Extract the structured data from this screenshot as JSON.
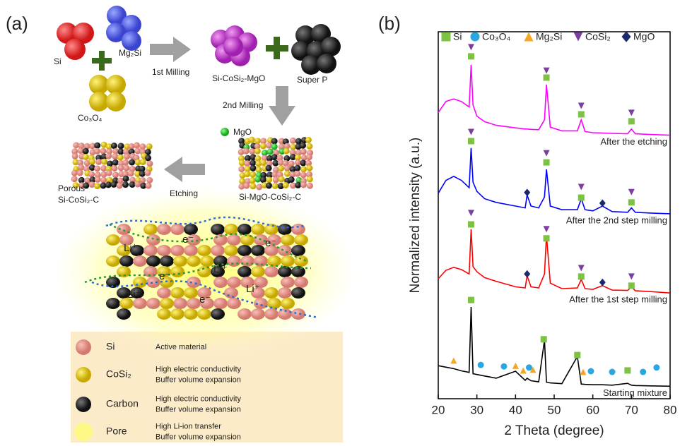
{
  "panel_labels": [
    "(a)",
    "(b)"
  ],
  "schematic": {
    "precursors": [
      "Si",
      "Mg₂Si",
      "Co₃O₄"
    ],
    "step1": "1st Milling",
    "product1": "Si-CoSi₂-MgO",
    "additive": "Super P",
    "step2": "2nd Milling",
    "mgo": "MgO",
    "product2": "Si-MgO-CoSi₂-C",
    "step3": "Etching",
    "product3": [
      "Porous",
      "Si-CoSi₂-C"
    ],
    "carriers": [
      "Li⁺",
      "e⁻",
      "Li⁺",
      "e⁻",
      "Li⁺",
      "e⁻",
      "Li⁺",
      "e⁻"
    ]
  },
  "legend_table": [
    {
      "name": "Si",
      "lines": [
        "Active material"
      ]
    },
    {
      "name": "CoSi₂",
      "lines": [
        "High electric conductivity",
        "Buffer volume expansion"
      ]
    },
    {
      "name": "Carbon",
      "lines": [
        "High electric conductivity",
        "Buffer volume expansion"
      ]
    },
    {
      "name": "Pore",
      "lines": [
        "High Li-ion transfer",
        "Buffer volume expansion"
      ]
    }
  ],
  "chart_data": {
    "type": "line",
    "xlabel": "2 Theta (degree)",
    "ylabel": "Normalized intensity (a.u.)",
    "xlim": [
      20,
      80
    ],
    "xticks": [
      20,
      30,
      40,
      50,
      60,
      70,
      80
    ],
    "ylim": [
      0,
      100
    ],
    "x": [
      20,
      22,
      24,
      26,
      28,
      28.5,
      29,
      30,
      32,
      35,
      40,
      42.5,
      43,
      44,
      46,
      47.5,
      48,
      49,
      52,
      56,
      57,
      58,
      60,
      62.5,
      65,
      69,
      70,
      71,
      75,
      80
    ],
    "series": [
      {
        "name": "After the etching",
        "color": "#ff00ff",
        "values": [
          78,
          81,
          81.7,
          81,
          79.5,
          91,
          80,
          77,
          75.5,
          74.5,
          73.8,
          73.5,
          73.5,
          73.4,
          73.3,
          76,
          85.6,
          74,
          73,
          73,
          76,
          72.8,
          72.5,
          72.4,
          72.3,
          72.2,
          73.5,
          72.2,
          72,
          71.8
        ]
      },
      {
        "name": "After the 2nd step milling",
        "color": "#0000ff",
        "values": [
          56,
          59.5,
          60.6,
          59.5,
          57.5,
          68.3,
          59,
          56.5,
          54.5,
          53.5,
          52.5,
          52,
          55.5,
          52.5,
          52,
          55,
          62.5,
          52.5,
          51.5,
          51.5,
          54.5,
          51.5,
          51.2,
          52.5,
          51,
          50.8,
          52,
          50.8,
          50.6,
          50.4
        ]
      },
      {
        "name": "After the 1st step milling",
        "color": "#ff0000",
        "values": [
          32.7,
          35,
          35.8,
          35.2,
          34,
          46.2,
          36,
          34.6,
          33,
          32,
          30.5,
          30.2,
          33.5,
          30.5,
          30.2,
          34,
          44.5,
          31.5,
          30,
          30.2,
          32.5,
          30,
          29.8,
          30.8,
          29.6,
          29.5,
          30.5,
          29.4,
          29.2,
          28.8
        ]
      },
      {
        "name": "Starting mixture",
        "color": "#000000",
        "values": [
          9,
          8.6,
          8.2,
          7.6,
          7.2,
          25,
          6.8,
          6.6,
          6.2,
          5.6,
          7.5,
          5,
          5.6,
          4.9,
          4.6,
          16,
          4.5,
          4.3,
          4.1,
          11.5,
          4,
          3.9,
          3.8,
          3.8,
          3.7,
          4.2,
          3.7,
          3.6,
          3.5,
          3.4
        ]
      }
    ],
    "phases": [
      {
        "name": "Si",
        "shape": "square",
        "color": "#7dc242",
        "x": [
          28.5,
          48,
          57,
          70,
          28.5,
          48,
          57,
          70,
          28.5,
          48,
          57,
          70,
          28.5,
          47.3,
          56,
          69
        ],
        "y": [
          93.3,
          87.5,
          77.5,
          75.6,
          70.2,
          64.4,
          54.8,
          53.5,
          47.5,
          43.7,
          33.3,
          30.8,
          26.9,
          16.2,
          11.9,
          7.7
        ]
      },
      {
        "name": "Co₃O₄",
        "shape": "circle",
        "color": "#2aa7e0",
        "x": [
          31,
          37,
          43.5,
          59.5,
          65,
          73,
          76.5
        ],
        "y": [
          9.2,
          8.8,
          8.5,
          7.5,
          7.3,
          7.3,
          8.5
        ]
      },
      {
        "name": "Mg₂Si",
        "shape": "triangle-up",
        "color": "#f5a623",
        "x": [
          24,
          40,
          42,
          44.5,
          57.5
        ],
        "y": [
          10.4,
          9,
          7.7,
          7.9,
          7.3
        ]
      },
      {
        "name": "CoSi₂",
        "shape": "triangle-down",
        "color": "#7b3fa0",
        "x": [
          28.5,
          48,
          57,
          70,
          28.5,
          48,
          57,
          70,
          28.5,
          48,
          57,
          70
        ],
        "y": [
          95.8,
          89.4,
          79.8,
          77.9,
          72.7,
          66.9,
          57.7,
          56.3,
          50.6,
          46.2,
          35.6,
          33.3
        ]
      },
      {
        "name": "MgO",
        "shape": "diamond",
        "color": "#1a2a6c",
        "x": [
          43,
          62.5,
          43,
          62.5
        ],
        "y": [
          56.2,
          53.3,
          34,
          31.7
        ]
      }
    ]
  }
}
